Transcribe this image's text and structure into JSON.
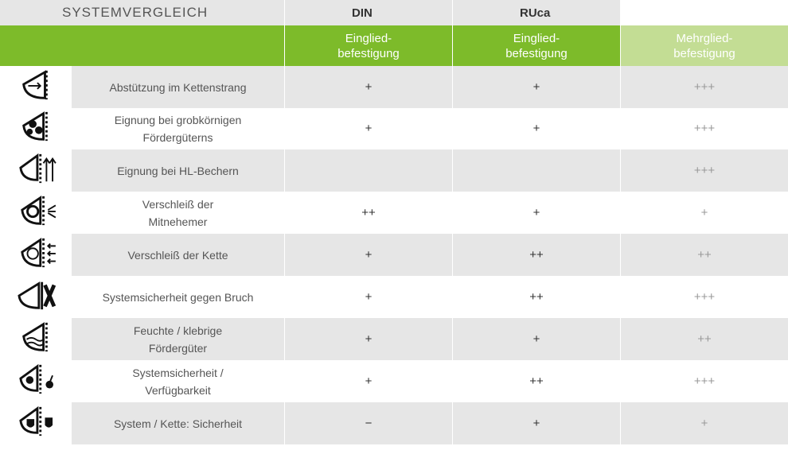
{
  "header": {
    "title": "SYSTEMVERGLEICH",
    "col_din": "DIN",
    "col_ruca": "RUca",
    "sub_din": "Eingliedbefestigung",
    "sub_ruca": "Eingliedbefestigung",
    "sub_mehr": "Mehrgliedbefestigung",
    "sub_din_display": "Eingliedbefestigung",
    "sub_ruca_display": "Eingliedbefestigung",
    "sub_mehr_display": "Mehrgliedbefestigung"
  },
  "rows": [
    {
      "icon": "chain-support-icon",
      "label": "Abstützung im Kettenstrang",
      "din": "+",
      "ruca": "+",
      "mehr": "+++"
    },
    {
      "icon": "coarse-material-icon",
      "label": "Eignung bei grobkörnigen Fördergüterns",
      "din": "+",
      "ruca": "+",
      "mehr": "+++"
    },
    {
      "icon": "hl-bucket-icon",
      "label": "Eignung bei HL-Bechern",
      "din": "",
      "ruca": "",
      "mehr": "+++"
    },
    {
      "icon": "attachment-wear-icon",
      "label": "Verschleiß der Mitnehemer",
      "din": "++",
      "ruca": "+",
      "mehr": "+"
    },
    {
      "icon": "chain-wear-icon",
      "label": "Verschleiß der Kette",
      "din": "+",
      "ruca": "++",
      "mehr": "++"
    },
    {
      "icon": "break-safety-icon",
      "label": "Systemsicherheit gegen Bruch",
      "din": "+",
      "ruca": "++",
      "mehr": "+++"
    },
    {
      "icon": "wet-material-icon",
      "label": "Feuchte / klebrige Fördergüter",
      "din": "+",
      "ruca": "+",
      "mehr": "++"
    },
    {
      "icon": "availability-icon",
      "label": "Systemsicherheit / Verfügbarkeit",
      "din": "+",
      "ruca": "++",
      "mehr": "+++"
    },
    {
      "icon": "shield-chain-icon",
      "label": "System / Kette: Sicherheit",
      "din": "−",
      "ruca": "+",
      "mehr": "+"
    }
  ]
}
